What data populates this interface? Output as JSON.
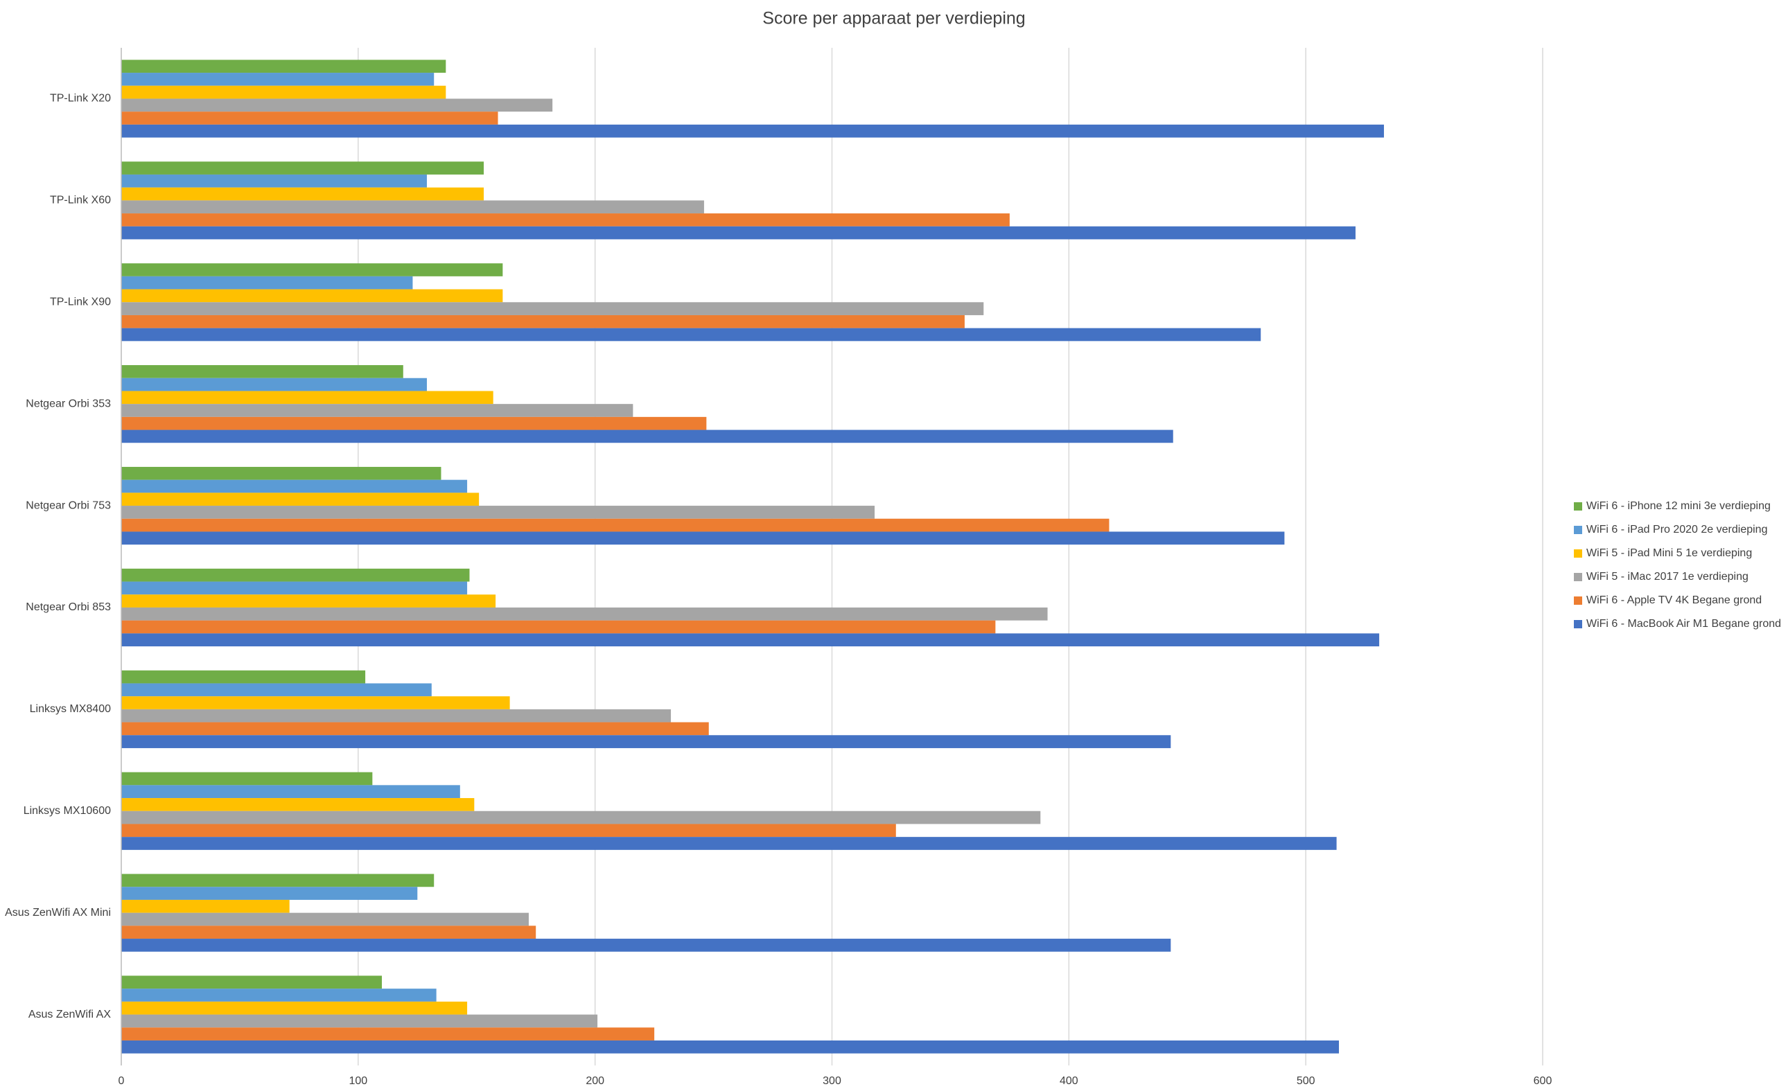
{
  "chart_data": {
    "type": "barh",
    "title": "Score per apparaat per verdieping",
    "categories": [
      "TP-Link X20",
      "TP-Link X60",
      "TP-Link X90",
      "Netgear Orbi 353",
      "Netgear Orbi 753",
      "Netgear Orbi 853",
      "Linksys MX8400",
      "Linksys MX10600",
      "Asus ZenWifi AX Mini",
      "Asus ZenWifi AX"
    ],
    "series": [
      {
        "name": "WiFi 6 - iPhone 12 mini 3e verdieping",
        "color": "#70ad47",
        "values": [
          137,
          153,
          161,
          119,
          135,
          147,
          103,
          106,
          132,
          110
        ]
      },
      {
        "name": "WiFi 6 - iPad Pro 2020 2e verdieping",
        "color": "#5b9bd5",
        "values": [
          132,
          129,
          123,
          129,
          146,
          146,
          131,
          143,
          125,
          133
        ]
      },
      {
        "name": "WiFi 5 - iPad Mini 5 1e verdieping",
        "color": "#ffc000",
        "values": [
          137,
          153,
          161,
          157,
          151,
          158,
          164,
          149,
          71,
          146
        ]
      },
      {
        "name": "WiFi 5 - iMac 2017 1e verdieping",
        "color": "#a5a5a5",
        "values": [
          182,
          246,
          364,
          216,
          318,
          391,
          232,
          388,
          172,
          201
        ]
      },
      {
        "name": "WiFi 6  - Apple TV 4K Begane grond",
        "color": "#ed7d31",
        "values": [
          159,
          375,
          356,
          247,
          417,
          369,
          248,
          327,
          175,
          225
        ]
      },
      {
        "name": "WiFi 6 - MacBook Air M1 Begane grond",
        "color": "#4472c4",
        "values": [
          533,
          521,
          481,
          444,
          491,
          531,
          443,
          513,
          443,
          514
        ]
      }
    ],
    "xlim": [
      0,
      600
    ],
    "xticks": [
      0,
      100,
      200,
      300,
      400,
      500,
      600
    ],
    "grid": true,
    "legend": "right"
  }
}
